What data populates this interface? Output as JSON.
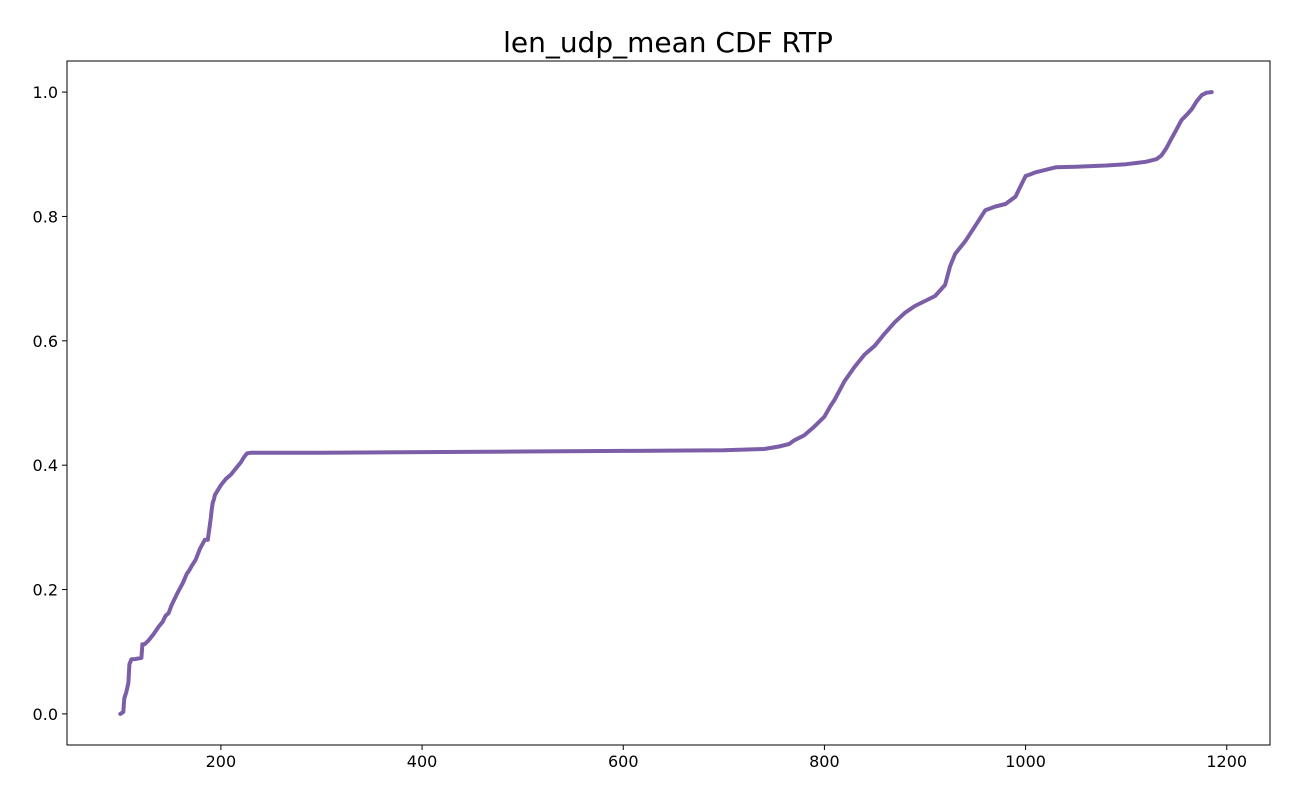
{
  "chart_data": {
    "type": "line",
    "title": "len_udp_mean CDF RTP",
    "xlabel": "",
    "ylabel": "",
    "xlim": [
      47,
      1243
    ],
    "ylim": [
      -0.05,
      1.05
    ],
    "xticks": [
      200,
      400,
      600,
      800,
      1000,
      1200
    ],
    "xtick_labels": [
      "200",
      "400",
      "600",
      "800",
      "1000",
      "1200"
    ],
    "yticks": [
      0.0,
      0.2,
      0.4,
      0.6,
      0.8,
      1.0
    ],
    "ytick_labels": [
      "0.0",
      "0.2",
      "0.4",
      "0.6",
      "0.8",
      "1.0"
    ],
    "grid": false,
    "legend": "none",
    "colors": {
      "line": "#7b5ea7",
      "axes": "#000000",
      "background": "#ffffff"
    },
    "series": [
      {
        "x": [
          100,
          103,
          104,
          106,
          108,
          109,
          111,
          114,
          121,
          122,
          124,
          128,
          130,
          133,
          138,
          142,
          145,
          148,
          151,
          154,
          157,
          162,
          166,
          169,
          171,
          175,
          179,
          184,
          187,
          190,
          191,
          192,
          193,
          194,
          197,
          200,
          205,
          210,
          215,
          220,
          223,
          226,
          230,
          300,
          400,
          500,
          600,
          700,
          740,
          755,
          765,
          770,
          780,
          790,
          800,
          806,
          810,
          820,
          830,
          840,
          850,
          860,
          870,
          880,
          890,
          900,
          910,
          920,
          925,
          930,
          940,
          950,
          960,
          970,
          980,
          990,
          996,
          1000,
          1005,
          1010,
          1020,
          1025,
          1030,
          1050,
          1080,
          1100,
          1110,
          1120,
          1130,
          1135,
          1140,
          1145,
          1150,
          1155,
          1160,
          1165,
          1170,
          1175,
          1180,
          1185
        ],
        "y": [
          0.0,
          0.003,
          0.025,
          0.035,
          0.05,
          0.08,
          0.088,
          0.088,
          0.09,
          0.112,
          0.112,
          0.118,
          0.122,
          0.128,
          0.14,
          0.148,
          0.158,
          0.162,
          0.175,
          0.185,
          0.195,
          0.21,
          0.225,
          0.232,
          0.238,
          0.248,
          0.265,
          0.28,
          0.28,
          0.315,
          0.33,
          0.34,
          0.345,
          0.352,
          0.36,
          0.368,
          0.378,
          0.385,
          0.395,
          0.405,
          0.413,
          0.419,
          0.42,
          0.42,
          0.421,
          0.422,
          0.423,
          0.424,
          0.426,
          0.43,
          0.434,
          0.44,
          0.448,
          0.462,
          0.478,
          0.495,
          0.505,
          0.535,
          0.558,
          0.578,
          0.592,
          0.612,
          0.63,
          0.645,
          0.656,
          0.664,
          0.672,
          0.69,
          0.72,
          0.74,
          0.76,
          0.785,
          0.81,
          0.816,
          0.82,
          0.832,
          0.852,
          0.865,
          0.868,
          0.871,
          0.875,
          0.877,
          0.879,
          0.88,
          0.882,
          0.884,
          0.886,
          0.888,
          0.892,
          0.898,
          0.91,
          0.925,
          0.94,
          0.955,
          0.963,
          0.972,
          0.985,
          0.995,
          0.999,
          1.0
        ]
      }
    ]
  }
}
